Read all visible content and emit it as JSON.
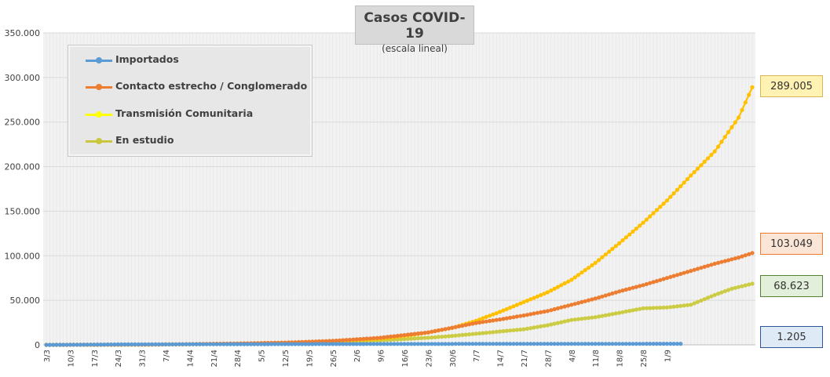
{
  "title": "Casos COVID-19",
  "subtitle": "(escala lineal)",
  "chart_data": {
    "type": "line",
    "title": "Casos COVID-19",
    "subtitle": "(escala lineal)",
    "ylim": [
      0,
      350000
    ],
    "yticks": [
      "0",
      "50.000",
      "100.000",
      "150.000",
      "200.000",
      "250.000",
      "300.000",
      "350.000"
    ],
    "x_start": "3/3",
    "x_end_day_index": 186,
    "xtick_labels": [
      "3/3",
      "10/3",
      "17/3",
      "24/3",
      "31/3",
      "7/4",
      "14/4",
      "21/4",
      "28/4",
      "5/5",
      "12/5",
      "19/5",
      "26/5",
      "2/6",
      "9/6",
      "16/6",
      "23/6",
      "30/6",
      "7/7",
      "14/7",
      "21/7",
      "28/7",
      "4/8",
      "11/8",
      "18/8",
      "25/8",
      "1/9"
    ],
    "grid": true,
    "legend_position": "top-left",
    "series": [
      {
        "name": "Importados",
        "color": "#5b9bd5",
        "final_label": "1.205",
        "points": [
          [
            0,
            0
          ],
          [
            14,
            300
          ],
          [
            21,
            500
          ],
          [
            30,
            600
          ],
          [
            45,
            700
          ],
          [
            60,
            800
          ],
          [
            75,
            900
          ],
          [
            90,
            1000
          ],
          [
            105,
            1050
          ],
          [
            120,
            1100
          ],
          [
            135,
            1130
          ],
          [
            150,
            1150
          ],
          [
            165,
            1170
          ],
          [
            186,
            1205
          ]
        ]
      },
      {
        "name": "Contacto estrecho / Conglomerado",
        "color": "#ed7d31",
        "final_label": "103.049",
        "points": [
          [
            0,
            0
          ],
          [
            14,
            100
          ],
          [
            28,
            300
          ],
          [
            42,
            800
          ],
          [
            56,
            1500
          ],
          [
            70,
            2500
          ],
          [
            84,
            4500
          ],
          [
            98,
            8000
          ],
          [
            112,
            14000
          ],
          [
            120,
            20000
          ],
          [
            126,
            24500
          ],
          [
            133,
            28500
          ],
          [
            140,
            33000
          ],
          [
            147,
            38000
          ],
          [
            154,
            45000
          ],
          [
            161,
            52000
          ],
          [
            168,
            60000
          ],
          [
            175,
            67000
          ],
          [
            182,
            75000
          ],
          [
            189,
            83000
          ],
          [
            196,
            91000
          ],
          [
            203,
            98000
          ],
          [
            207,
            103049
          ]
        ]
      },
      {
        "name": "Transmisión Comunitaria",
        "color": "#ffd000",
        "final_label": "289.005",
        "points": [
          [
            0,
            0
          ],
          [
            14,
            100
          ],
          [
            28,
            300
          ],
          [
            42,
            700
          ],
          [
            56,
            1400
          ],
          [
            70,
            2500
          ],
          [
            84,
            4000
          ],
          [
            98,
            7000
          ],
          [
            107,
            11000
          ],
          [
            112,
            14000
          ],
          [
            119,
            19000
          ],
          [
            126,
            27000
          ],
          [
            133,
            37000
          ],
          [
            140,
            48000
          ],
          [
            147,
            59000
          ],
          [
            154,
            73000
          ],
          [
            161,
            92000
          ],
          [
            168,
            114000
          ],
          [
            175,
            137000
          ],
          [
            182,
            162000
          ],
          [
            189,
            190000
          ],
          [
            196,
            217000
          ],
          [
            203,
            255000
          ],
          [
            207,
            289005
          ]
        ]
      },
      {
        "name": "En estudio",
        "color": "#c9c73f",
        "final_label": "68.623",
        "points": [
          [
            0,
            0
          ],
          [
            14,
            100
          ],
          [
            28,
            300
          ],
          [
            42,
            700
          ],
          [
            56,
            1200
          ],
          [
            70,
            1800
          ],
          [
            84,
            3000
          ],
          [
            98,
            5000
          ],
          [
            112,
            8000
          ],
          [
            119,
            10000
          ],
          [
            126,
            12500
          ],
          [
            133,
            15000
          ],
          [
            140,
            17500
          ],
          [
            147,
            22000
          ],
          [
            154,
            28000
          ],
          [
            161,
            31000
          ],
          [
            168,
            36000
          ],
          [
            175,
            41000
          ],
          [
            182,
            42000
          ],
          [
            189,
            45000
          ],
          [
            196,
            56000
          ],
          [
            201,
            63000
          ],
          [
            207,
            68623
          ]
        ]
      }
    ]
  }
}
